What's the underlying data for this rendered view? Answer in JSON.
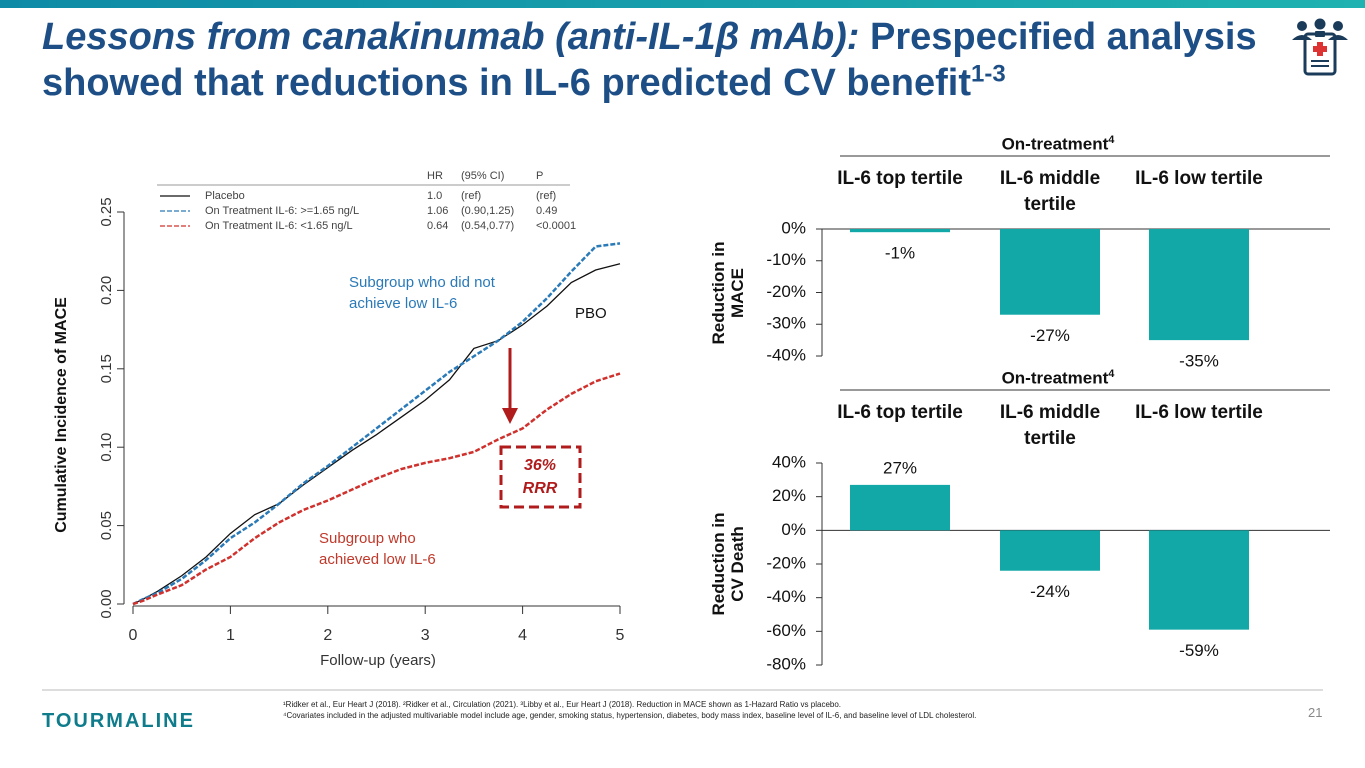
{
  "header": {
    "title_italic": "Lessons from canakinumab (anti-IL-1β mAb):",
    "title_rest": "Prespecified analysis showed that reductions in IL-6 predicted CV benefit",
    "title_sup": "1-3"
  },
  "chart_data": [
    {
      "type": "line",
      "xlabel": "Follow-up (years)",
      "ylabel": "Cumulative Incidence of MACE",
      "xlim": [
        0,
        5
      ],
      "xticks": [
        0,
        1,
        2,
        3,
        4,
        5
      ],
      "ylim": [
        0,
        0.25
      ],
      "yticks": [
        {
          "value": 0,
          "label": "0.00"
        },
        {
          "value": 0.05,
          "label": "0.05"
        },
        {
          "value": 0.1,
          "label": "0.10"
        },
        {
          "value": 0.15,
          "label": "0.15"
        },
        {
          "value": 0.2,
          "label": "0.20"
        },
        {
          "value": 0.25,
          "label": "0.25"
        }
      ],
      "x": [
        0,
        0.1,
        0.25,
        0.5,
        0.75,
        1,
        1.25,
        1.5,
        1.75,
        2,
        2.25,
        2.5,
        2.75,
        3,
        3.25,
        3.5,
        3.75,
        4,
        4.25,
        4.5,
        4.75,
        5
      ],
      "series": [
        {
          "name": "Placebo",
          "color": "#111111",
          "dash": false,
          "values": [
            0,
            0.003,
            0.008,
            0.018,
            0.03,
            0.045,
            0.057,
            0.064,
            0.076,
            0.087,
            0.098,
            0.108,
            0.119,
            0.13,
            0.143,
            0.163,
            0.168,
            0.178,
            0.19,
            0.205,
            0.213,
            0.217
          ]
        },
        {
          "name": "On Treatment IL-6: >=1.65 ng/L",
          "color": "#2a7ab8",
          "dash": true,
          "values": [
            0,
            0.003,
            0.007,
            0.016,
            0.028,
            0.042,
            0.052,
            0.064,
            0.077,
            0.088,
            0.1,
            0.112,
            0.124,
            0.136,
            0.148,
            0.158,
            0.168,
            0.18,
            0.195,
            0.212,
            0.228,
            0.23
          ]
        },
        {
          "name": "On Treatment IL-6: <1.65 ng/L",
          "color": "#d0312d",
          "dash": true,
          "values": [
            0,
            0.002,
            0.006,
            0.012,
            0.022,
            0.03,
            0.042,
            0.052,
            0.06,
            0.066,
            0.073,
            0.08,
            0.086,
            0.09,
            0.093,
            0.097,
            0.105,
            0.112,
            0.124,
            0.134,
            0.142,
            0.147
          ]
        }
      ],
      "legend_table": {
        "headers": [
          "HR",
          "(95% CI)",
          "P"
        ],
        "rows": [
          [
            "1.0",
            "(ref)",
            "(ref)"
          ],
          [
            "1.06",
            "(0.90,1.25)",
            "0.49"
          ],
          [
            "0.64",
            "(0.54,0.77)",
            "<0.0001"
          ]
        ]
      },
      "annotations": {
        "not_low": [
          "Subgroup who did not",
          "achieve low IL-6"
        ],
        "pbo": "PBO",
        "low": [
          "Subgroup who",
          "achieved low IL-6"
        ],
        "rrr": [
          "36%",
          "RRR"
        ]
      }
    },
    {
      "type": "bar",
      "title": "On-treatment",
      "title_sup": "4",
      "ylabel": "Reduction in MACE",
      "color": "#13a8a8",
      "categories": [
        "IL-6 top tertile",
        "IL-6 middle tertile",
        "IL-6 low tertile"
      ],
      "values": [
        -1,
        -27,
        -35
      ],
      "value_labels": [
        "-1%",
        "-27%",
        "-35%"
      ],
      "ylim": [
        -40,
        0
      ],
      "yticks": [
        {
          "value": 0,
          "label": "0%"
        },
        {
          "value": -10,
          "label": "-10%"
        },
        {
          "value": -20,
          "label": "-20%"
        },
        {
          "value": -30,
          "label": "-30%"
        },
        {
          "value": -40,
          "label": "-40%"
        }
      ]
    },
    {
      "type": "bar",
      "title": "On-treatment",
      "title_sup": "4",
      "ylabel": "Reduction in CV Death",
      "color": "#13a8a8",
      "categories": [
        "IL-6 top tertile",
        "IL-6 middle tertile",
        "IL-6 low tertile"
      ],
      "values": [
        27,
        -24,
        -59
      ],
      "value_labels": [
        "27%",
        "-24%",
        "-59%"
      ],
      "ylim": [
        -80,
        40
      ],
      "yticks": [
        {
          "value": 40,
          "label": "40%"
        },
        {
          "value": 20,
          "label": "20%"
        },
        {
          "value": 0,
          "label": "0%"
        },
        {
          "value": -20,
          "label": "-20%"
        },
        {
          "value": -40,
          "label": "-40%"
        },
        {
          "value": -60,
          "label": "-60%"
        },
        {
          "value": -80,
          "label": "-80%"
        }
      ]
    }
  ],
  "footer": {
    "logo": "TOURMALINE",
    "notes": [
      "¹Ridker et al., Eur Heart J (2018). ²Ridker et al., Circulation (2021). ³Libby et al., Eur Heart J (2018). Reduction in MACE shown as 1-Hazard Ratio vs placebo.",
      "⁴Covariates included in the adjusted multivariable model include age, gender, smoking status, hypertension, diabetes, body mass index, baseline level of IL-6, and baseline level of LDL cholesterol."
    ],
    "page": "21"
  }
}
